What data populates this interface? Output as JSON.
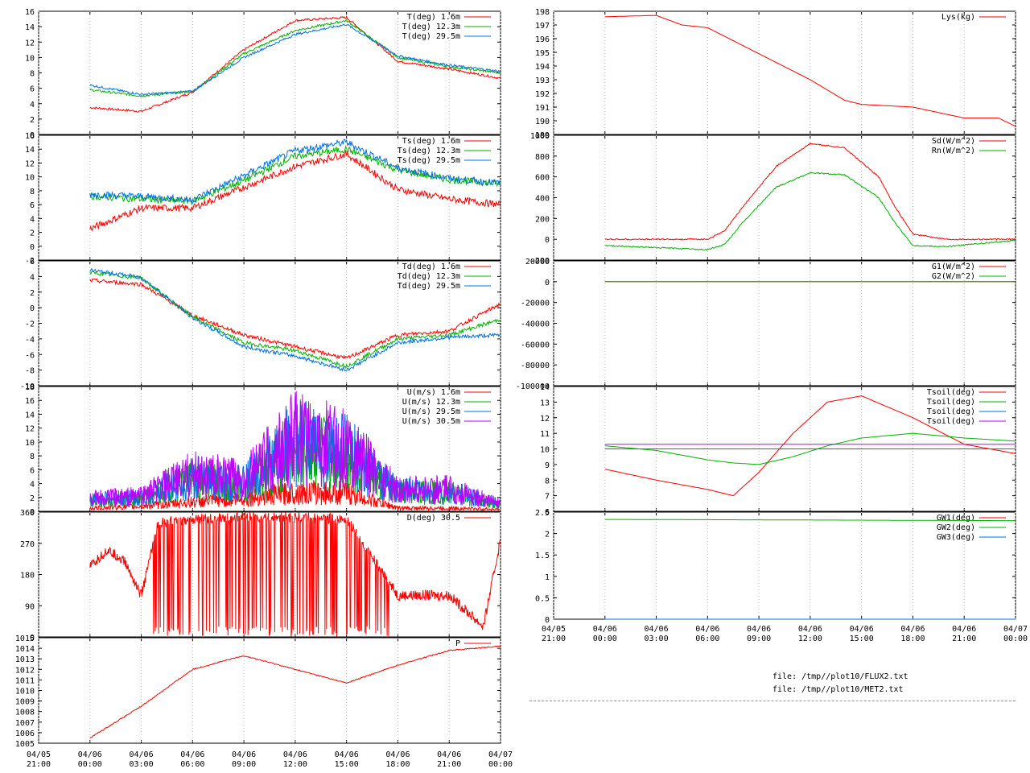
{
  "left_time_labels": [
    {
      "date": "04/05",
      "time": "21:00"
    },
    {
      "date": "04/06",
      "time": "00:00"
    },
    {
      "date": "04/06",
      "time": "03:00"
    },
    {
      "date": "04/06",
      "time": "06:00"
    },
    {
      "date": "04/06",
      "time": "09:00"
    },
    {
      "date": "04/06",
      "time": "12:00"
    },
    {
      "date": "04/06",
      "time": "15:00"
    },
    {
      "date": "04/06",
      "time": "18:00"
    },
    {
      "date": "04/06",
      "time": "21:00"
    },
    {
      "date": "04/07",
      "time": "00:00"
    }
  ],
  "right_time_labels": [
    {
      "date": "04/05",
      "time": "21:00"
    },
    {
      "date": "04/06",
      "time": "00:00"
    },
    {
      "date": "04/06",
      "time": "03:00"
    },
    {
      "date": "04/06",
      "time": "06:00"
    },
    {
      "date": "04/06",
      "time": "09:00"
    },
    {
      "date": "04/06",
      "time": "12:00"
    },
    {
      "date": "04/06",
      "time": "15:00"
    },
    {
      "date": "04/06",
      "time": "18:00"
    },
    {
      "date": "04/06",
      "time": "21:00"
    },
    {
      "date": "04/07",
      "time": "00:00"
    }
  ],
  "files": [
    "file: /tmp//plot10/FLUX2.txt",
    "file: /tmp//plot10/MET2.txt"
  ],
  "chart_data": [
    {
      "type": "line",
      "id": "air-temp",
      "ylim": [
        0,
        16
      ],
      "yticks": [
        "0",
        "2",
        "4",
        "6",
        "8",
        "10",
        "12",
        "14",
        "16"
      ],
      "x": [
        0,
        3,
        6,
        9,
        12,
        15,
        18,
        21,
        24
      ],
      "series": [
        {
          "name": "T(deg)  1.6m",
          "color": "#ff0000",
          "values": [
            3.5,
            3.0,
            5.5,
            11,
            14.8,
            15.2,
            9.5,
            8.5,
            7.3
          ]
        },
        {
          "name": "T(deg) 12.3m",
          "color": "#00b000",
          "values": [
            5.8,
            5.0,
            5.6,
            10.5,
            13.5,
            14.8,
            10,
            8.8,
            8.0
          ]
        },
        {
          "name": "T(deg) 29.5m",
          "color": "#0070e0",
          "values": [
            6.4,
            5.2,
            5.6,
            10,
            13,
            14.3,
            10.2,
            9.0,
            8.2
          ]
        }
      ]
    },
    {
      "type": "line",
      "id": "surface-temp",
      "ylim": [
        -2,
        16
      ],
      "yticks": [
        "-2",
        "0",
        "2",
        "4",
        "6",
        "8",
        "10",
        "12",
        "14",
        "16"
      ],
      "x": [
        0,
        3,
        6,
        9,
        12,
        15,
        18,
        21,
        24
      ],
      "series": [
        {
          "name": "Ts(deg)  1.6m",
          "color": "#ff0000",
          "values": [
            2.5,
            5.5,
            5.5,
            8.5,
            11.5,
            13.3,
            8.2,
            6.8,
            6.0
          ]
        },
        {
          "name": "Ts(deg) 12.3m",
          "color": "#00b000",
          "values": [
            7.2,
            6.8,
            6.5,
            9.5,
            13,
            14,
            11,
            9.6,
            9.0
          ]
        },
        {
          "name": "Ts(deg) 29.5m",
          "color": "#0070e0",
          "values": [
            7.5,
            7.2,
            6.7,
            10.2,
            13.8,
            15,
            11.3,
            9.8,
            9.1
          ]
        }
      ]
    },
    {
      "type": "line",
      "id": "dew-point",
      "ylim": [
        -10,
        6
      ],
      "yticks": [
        "-10",
        "-8",
        "-6",
        "-4",
        "-2",
        "0",
        "2",
        "4",
        "6"
      ],
      "x": [
        0,
        3,
        6,
        9,
        12,
        15,
        18,
        21,
        24
      ],
      "series": [
        {
          "name": "Td(deg)  1.6m",
          "color": "#ff0000",
          "values": [
            3.5,
            3.0,
            -1.0,
            -3.5,
            -5.0,
            -6.5,
            -3.5,
            -3.0,
            0.5
          ]
        },
        {
          "name": "Td(deg) 12.3m",
          "color": "#00b000",
          "values": [
            4.5,
            3.8,
            -1.2,
            -4.5,
            -5.5,
            -7.5,
            -4.0,
            -3.5,
            -1.5
          ]
        },
        {
          "name": "Td(deg) 29.5m",
          "color": "#0070e0",
          "values": [
            4.8,
            3.9,
            -1.3,
            -5.0,
            -6.2,
            -8.0,
            -4.5,
            -3.8,
            -3.5
          ]
        }
      ]
    },
    {
      "type": "line",
      "id": "wind-speed",
      "ylim": [
        0,
        18
      ],
      "yticks": [
        "0",
        "2",
        "4",
        "6",
        "8",
        "10",
        "12",
        "14",
        "16",
        "18"
      ],
      "x": [
        0,
        3,
        6,
        9,
        12,
        15,
        18,
        21,
        24
      ],
      "series": [
        {
          "name": "U(m/s)  1.6m",
          "color": "#ff0000",
          "values": [
            0.5,
            0.8,
            1.5,
            2.0,
            3.0,
            3.0,
            0.5,
            0.5,
            0.3
          ]
        },
        {
          "name": "U(m/s) 12.3m",
          "color": "#00b000",
          "values": [
            1.5,
            2.0,
            5.0,
            4.0,
            10.0,
            9.0,
            3.0,
            3.0,
            1.0
          ]
        },
        {
          "name": "U(m/s) 29.5m",
          "color": "#0070e0",
          "values": [
            1.8,
            2.2,
            5.5,
            4.5,
            11.0,
            9.5,
            3.2,
            3.2,
            1.2
          ]
        },
        {
          "name": "U(m/s) 30.5m",
          "color": "#c000ff",
          "values": [
            2.0,
            2.5,
            6.0,
            5.0,
            12.0,
            10.0,
            3.5,
            3.5,
            1.2
          ]
        }
      ]
    },
    {
      "type": "line",
      "id": "wind-direction",
      "ylim": [
        0,
        360
      ],
      "yticks": [
        "0",
        "90",
        "180",
        "270",
        "360"
      ],
      "x": [
        0,
        1,
        2,
        3,
        4,
        6,
        9,
        12,
        15,
        18,
        20,
        21,
        23,
        24
      ],
      "series": [
        {
          "name": "D(deg)  30.5",
          "color": "#ff0000",
          "values": [
            200,
            250,
            220,
            120,
            330,
            340,
            345,
            345,
            340,
            120,
            120,
            120,
            30,
            280
          ]
        }
      ]
    },
    {
      "type": "line",
      "id": "pressure",
      "ylim": [
        1005,
        1015
      ],
      "yticks": [
        "1005",
        "1006",
        "1007",
        "1008",
        "1009",
        "1010",
        "1011",
        "1012",
        "1013",
        "1014",
        "1015"
      ],
      "x": [
        0,
        3,
        6,
        9,
        12,
        15,
        18,
        21,
        24
      ],
      "series": [
        {
          "name": "P",
          "color": "#ff0000",
          "values": [
            1005.5,
            1008.5,
            1012.0,
            1013.3,
            1012.0,
            1010.7,
            1012.4,
            1013.8,
            1014.2
          ]
        }
      ]
    },
    {
      "type": "line",
      "id": "lysimeter",
      "ylim": [
        189,
        198
      ],
      "yticks": [
        "189",
        "190",
        "191",
        "192",
        "193",
        "194",
        "195",
        "196",
        "197",
        "198"
      ],
      "x": [
        0,
        3,
        4.5,
        6,
        9,
        12,
        14,
        15,
        18,
        21,
        23,
        24
      ],
      "series": [
        {
          "name": "Lys(kg)",
          "color": "#ff0000",
          "values": [
            197.6,
            197.7,
            197.0,
            196.8,
            194.9,
            193.0,
            191.5,
            191.2,
            191.0,
            190.2,
            190.2,
            189.6
          ]
        }
      ]
    },
    {
      "type": "line",
      "id": "radiation",
      "ylim": [
        -200,
        1000
      ],
      "yticks": [
        "-200",
        "0",
        "200",
        "400",
        "600",
        "800",
        "1000"
      ],
      "x": [
        0,
        3,
        6,
        7,
        8,
        10,
        12,
        14,
        16,
        17,
        18,
        20,
        24
      ],
      "series": [
        {
          "name": "Sd(W/m^2)",
          "color": "#ff0000",
          "values": [
            0,
            0,
            0,
            80,
            300,
            700,
            920,
            880,
            600,
            300,
            50,
            0,
            0
          ]
        },
        {
          "name": "Rn(W/m^2)",
          "color": "#00b000",
          "values": [
            -60,
            -80,
            -100,
            -50,
            150,
            500,
            640,
            620,
            400,
            150,
            -60,
            -70,
            -10
          ]
        }
      ]
    },
    {
      "type": "line",
      "id": "ground-flux",
      "ylim": [
        -100000,
        20000
      ],
      "yticks": [
        "-100000",
        "-80000",
        "-60000",
        "-40000",
        "-20000",
        "0",
        "20000"
      ],
      "x": [
        0,
        24
      ],
      "series": [
        {
          "name": "G1(W/m^2)",
          "color": "#ff0000",
          "values": [
            0,
            0
          ]
        },
        {
          "name": "G2(W/m^2)",
          "color": "#00b000",
          "values": [
            0,
            0
          ]
        }
      ]
    },
    {
      "type": "line",
      "id": "soil-temp",
      "ylim": [
        6,
        14
      ],
      "yticks": [
        "6",
        "7",
        "8",
        "9",
        "10",
        "11",
        "12",
        "13",
        "14"
      ],
      "x": [
        0,
        3,
        6,
        7.5,
        9,
        11,
        13,
        15,
        18,
        21,
        24
      ],
      "series": [
        {
          "name": "Tsoil(deg)",
          "color": "#ff0000",
          "values": [
            8.7,
            8.0,
            7.4,
            7.0,
            8.5,
            11.0,
            13.0,
            13.4,
            12.0,
            10.3,
            9.7
          ]
        },
        {
          "name": "Tsoil(deg)",
          "color": "#00b000",
          "values": [
            10.2,
            9.9,
            9.3,
            9.1,
            9.0,
            9.5,
            10.2,
            10.7,
            11.0,
            10.7,
            10.5
          ]
        },
        {
          "name": "Tsoil(deg)",
          "color": "#0070e0",
          "values": [
            10.0,
            10.0,
            10.0,
            10.0,
            10.0,
            10.0,
            10.0,
            10.0,
            10.0,
            10.0,
            10.0
          ]
        },
        {
          "name": "Tsoil(deg)",
          "color": "#c000ff",
          "values": [
            10.3,
            10.3,
            10.3,
            10.3,
            10.3,
            10.3,
            10.3,
            10.3,
            10.3,
            10.3,
            10.3
          ]
        }
      ]
    },
    {
      "type": "line",
      "id": "groundwater",
      "ylim": [
        0,
        2.5
      ],
      "yticks": [
        "0",
        "0.5",
        "1",
        "1.5",
        "2",
        "2.5"
      ],
      "x": [
        0,
        24
      ],
      "series": [
        {
          "name": "GW1(deg)",
          "color": "#ff0000",
          "values": [
            0,
            0
          ]
        },
        {
          "name": "GW2(deg)",
          "color": "#00b000",
          "values": [
            2.33,
            2.3
          ]
        },
        {
          "name": "GW3(deg)",
          "color": "#0070e0",
          "values": [
            0,
            0
          ]
        }
      ]
    }
  ]
}
